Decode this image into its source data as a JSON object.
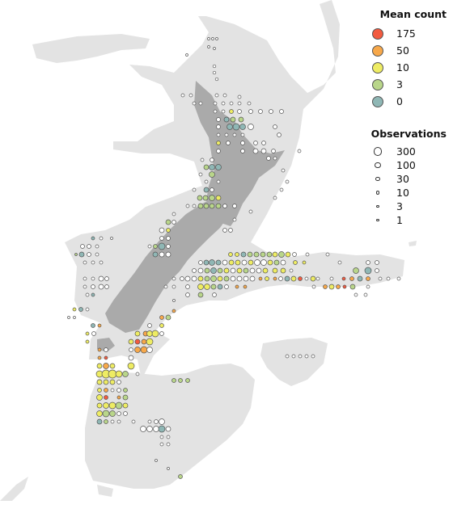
{
  "colors": {
    "land_context": "#e3e3e3",
    "nz_land": "#aaaaaa",
    "symbol_outline": "#555555",
    "no_catch_fill": "#ffffff"
  },
  "legend": {
    "color_title": "Mean count",
    "color_items": [
      {
        "label": "175",
        "color": "#f25a3f"
      },
      {
        "label": "50",
        "color": "#f7a84a"
      },
      {
        "label": "10",
        "color": "#eeec63"
      },
      {
        "label": "3",
        "color": "#b9d68a"
      },
      {
        "label": "0",
        "color": "#8fb7b5"
      }
    ],
    "size_title": "Observations",
    "size_items": [
      {
        "label": "300",
        "size": 300
      },
      {
        "label": "100",
        "size": 100
      },
      {
        "label": "30",
        "size": 30
      },
      {
        "label": "10",
        "size": 10
      },
      {
        "label": "3",
        "size": 3
      },
      {
        "label": "1",
        "size": 1
      }
    ]
  }
}
